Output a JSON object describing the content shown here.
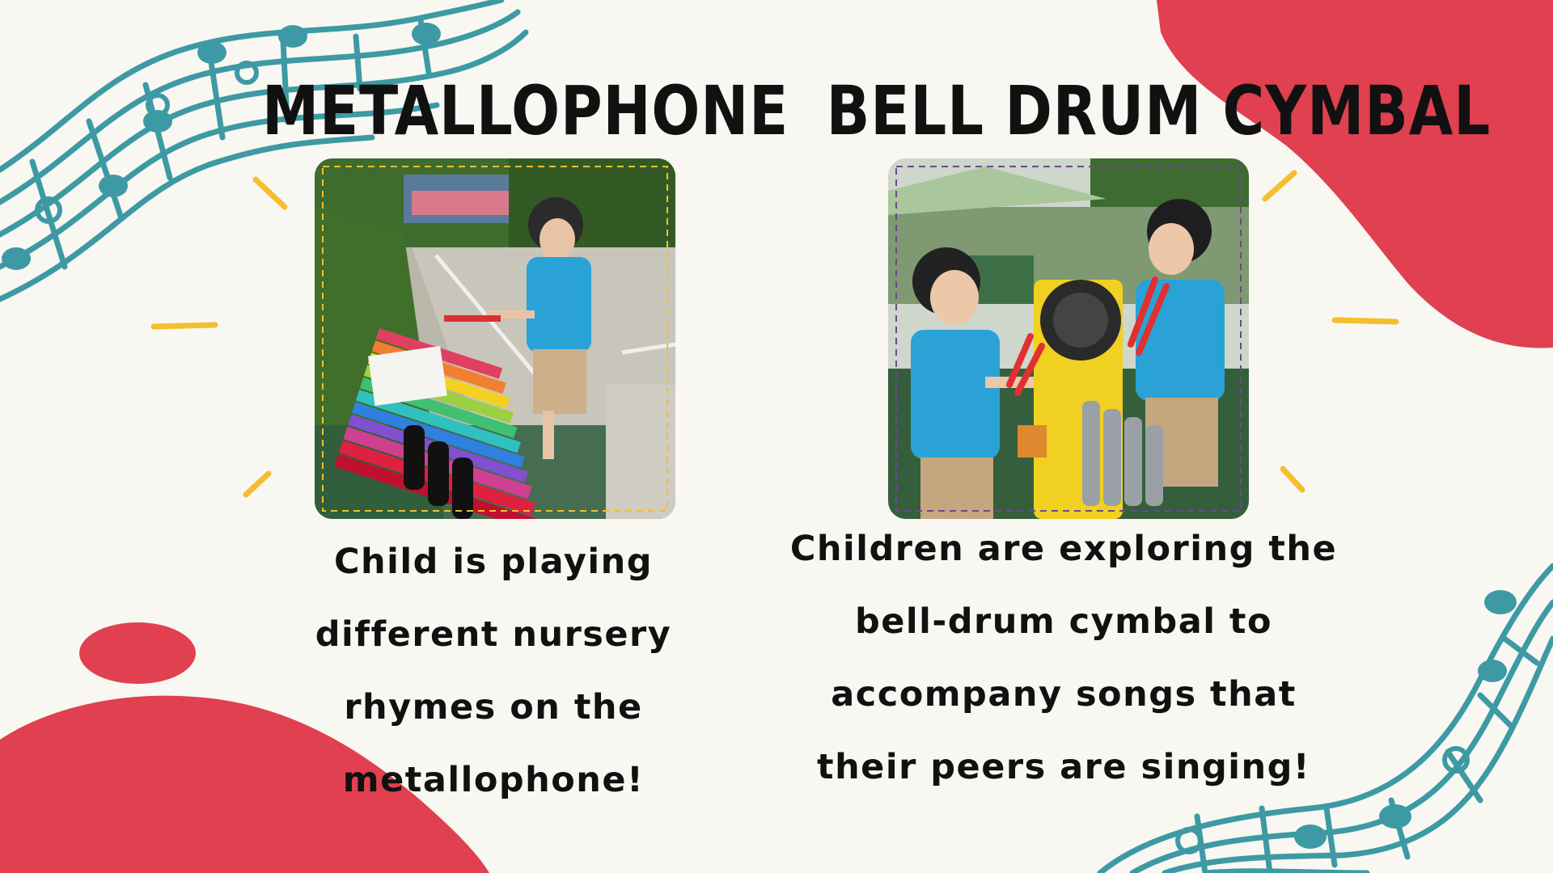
{
  "slide": {
    "background_color": "#f8f7f2",
    "accent_red": "#e0404f",
    "accent_teal": "#3d9aa4",
    "accent_yellow": "#f5be2e"
  },
  "left_panel": {
    "title": "METALLOPHONE",
    "photo_icon": "child-playing-metallophone-photo",
    "caption": "Child is playing different nursery rhymes on the metallophone!"
  },
  "right_panel": {
    "title": "BELL DRUM CYMBAL",
    "photo_icon": "children-playing-bell-drum-cymbal-photo",
    "caption": "Children are exploring the bell-drum cymbal to accompany songs that their peers are singing!"
  }
}
